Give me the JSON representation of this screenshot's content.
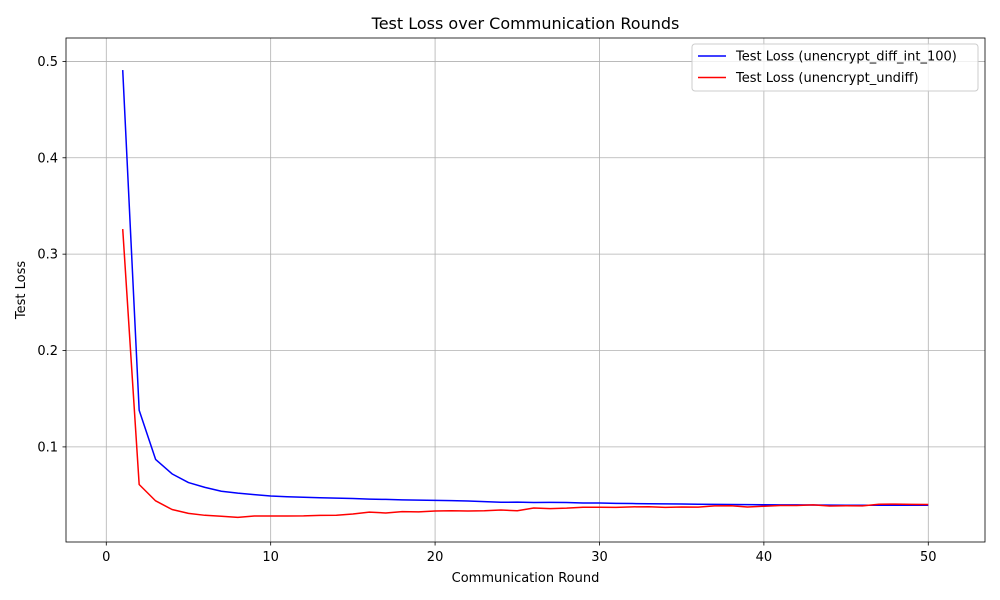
{
  "chart_data": {
    "type": "line",
    "title": "Test Loss over Communication Rounds",
    "xlabel": "Communication Round",
    "ylabel": "Test Loss",
    "xlim": [
      -2.45,
      53.45
    ],
    "ylim": [
      0.0013,
      0.5243
    ],
    "xticks": [
      0,
      10,
      20,
      30,
      40,
      50
    ],
    "yticks": [
      0.1,
      0.2,
      0.3,
      0.4,
      0.5
    ],
    "xtick_labels": [
      "0",
      "10",
      "20",
      "30",
      "40",
      "50"
    ],
    "ytick_labels": [
      "0.1",
      "0.2",
      "0.3",
      "0.4",
      "0.5"
    ],
    "grid": true,
    "legend_position": "top-right",
    "x": [
      1,
      2,
      3,
      4,
      5,
      6,
      7,
      8,
      9,
      10,
      11,
      12,
      13,
      14,
      15,
      16,
      17,
      18,
      19,
      20,
      21,
      22,
      23,
      24,
      25,
      26,
      27,
      28,
      29,
      30,
      31,
      32,
      33,
      34,
      35,
      36,
      37,
      38,
      39,
      40,
      41,
      42,
      43,
      44,
      45,
      46,
      47,
      48,
      49,
      50
    ],
    "series": [
      {
        "name": "Test Loss (unencrypt_diff_int_100)",
        "color": "#0000ff",
        "values": [
          0.491,
          0.138,
          0.087,
          0.072,
          0.063,
          0.058,
          0.054,
          0.052,
          0.0505,
          0.049,
          0.0483,
          0.0478,
          0.0472,
          0.0468,
          0.0464,
          0.0458,
          0.0455,
          0.045,
          0.0448,
          0.0445,
          0.0442,
          0.0438,
          0.0432,
          0.0425,
          0.0427,
          0.0423,
          0.0424,
          0.0423,
          0.0418,
          0.0418,
          0.0414,
          0.0412,
          0.041,
          0.0408,
          0.0407,
          0.0405,
          0.0403,
          0.0402,
          0.0401,
          0.0399,
          0.0398,
          0.0398,
          0.0397,
          0.0396,
          0.0395,
          0.0395,
          0.0395,
          0.0394,
          0.0394,
          0.0394
        ]
      },
      {
        "name": "Test Loss (unencrypt_undiff)",
        "color": "#ff0000",
        "values": [
          0.326,
          0.061,
          0.044,
          0.035,
          0.031,
          0.029,
          0.028,
          0.0268,
          0.0283,
          0.0283,
          0.0283,
          0.0284,
          0.0289,
          0.029,
          0.0303,
          0.0323,
          0.0314,
          0.0328,
          0.0326,
          0.0335,
          0.0337,
          0.0335,
          0.0337,
          0.0345,
          0.0337,
          0.0366,
          0.0359,
          0.0364,
          0.0373,
          0.0374,
          0.0372,
          0.0378,
          0.0379,
          0.0372,
          0.0376,
          0.0375,
          0.0388,
          0.0389,
          0.0376,
          0.0384,
          0.0392,
          0.0392,
          0.0398,
          0.0387,
          0.0389,
          0.0388,
          0.0405,
          0.0406,
          0.0404,
          0.0402
        ]
      }
    ]
  }
}
